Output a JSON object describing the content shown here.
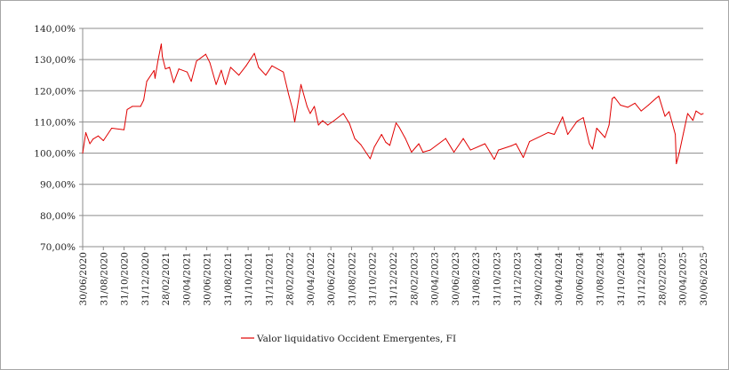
{
  "chart_data": {
    "type": "line",
    "title": "",
    "xlabel": "",
    "ylabel": "",
    "x_unit": "months since 30/06/2020",
    "xlim": [
      0,
      60
    ],
    "ylim": [
      70,
      140
    ],
    "y_ticks": [
      70,
      80,
      90,
      100,
      110,
      120,
      130,
      140
    ],
    "y_tick_labels": [
      "70,00%",
      "80,00%",
      "90,00%",
      "100,00%",
      "110,00%",
      "120,00%",
      "130,00%",
      "140,00%"
    ],
    "x_tick_labels": [
      "30/06/2020",
      "31/08/2020",
      "31/10/2020",
      "31/12/2020",
      "28/02/2021",
      "30/04/2021",
      "30/06/2021",
      "31/08/2021",
      "31/10/2021",
      "31/12/2021",
      "28/02/2022",
      "30/04/2022",
      "30/06/2022",
      "31/08/2022",
      "31/10/2022",
      "31/12/2022",
      "28/02/2023",
      "30/04/2023",
      "30/06/2023",
      "31/08/2023",
      "31/10/2023",
      "31/12/2023",
      "29/02/2024",
      "30/04/2024",
      "30/06/2024",
      "31/08/2024",
      "31/10/2024",
      "31/12/2024",
      "28/02/2025",
      "30/04/2025",
      "30/06/2025"
    ],
    "grid": true,
    "legend_position": "bottom",
    "series": [
      {
        "name": "Valor liquidativo Occident Emergentes, FI",
        "color": "#e00000",
        "x": [
          0,
          0.3,
          0.7,
          1.0,
          1.5,
          2.0,
          2.8,
          4.0,
          4.3,
          4.8,
          5.6,
          5.9,
          6.2,
          6.9,
          7.0,
          7.3,
          7.6,
          7.7,
          8.0,
          8.4,
          8.8,
          9.3,
          10.1,
          10.5,
          11.0,
          11.9,
          12.3,
          12.9,
          13.4,
          13.8,
          14.3,
          15.1,
          15.8,
          16.6,
          17.0,
          17.7,
          18.3,
          19.4,
          19.9,
          20.3,
          20.5,
          20.9,
          21.1,
          21.7,
          22.0,
          22.4,
          22.8,
          23.2,
          23.7,
          24.3,
          25.2,
          25.8,
          26.3,
          26.9,
          27.8,
          28.2,
          28.9,
          29.3,
          29.7,
          30.3,
          30.6,
          31.2,
          31.8,
          32.5,
          32.9,
          33.6,
          35.1,
          35.9,
          36.8,
          37.5,
          38.9,
          39.8,
          40.2,
          41.5,
          41.9,
          42.6,
          43.2,
          45.0,
          45.6,
          46.4,
          46.9,
          47.8,
          48.4,
          49.0,
          49.3,
          49.7,
          50.5,
          50.9,
          51.2,
          51.4,
          52.0,
          52.7,
          53.4,
          54.0,
          54.7,
          55.4,
          55.7,
          56.3,
          56.7,
          57.3,
          57.4,
          57.7,
          58.1,
          58.5,
          59.0,
          59.3,
          59.8,
          60.0
        ],
        "values": [
          100,
          106.6,
          103,
          104.5,
          105.5,
          104,
          108,
          107.5,
          114,
          115,
          115,
          117,
          123,
          126.5,
          124,
          130,
          135,
          131,
          127,
          127.5,
          122.6,
          127,
          126,
          123,
          129.5,
          131.7,
          129,
          122,
          126.6,
          122,
          127.5,
          125,
          128,
          132,
          127.5,
          125,
          128,
          126,
          119,
          114,
          110,
          117.5,
          122,
          115,
          112.7,
          115,
          109,
          110.4,
          109,
          110.4,
          112.7,
          109.5,
          104.7,
          102.7,
          98.2,
          102,
          106,
          103.5,
          102.5,
          109.7,
          108.3,
          104.7,
          100.3,
          103,
          100.3,
          101,
          104.7,
          100.3,
          104.7,
          101,
          103,
          98,
          101,
          102.4,
          103,
          98.6,
          103.7,
          106.6,
          106,
          111.6,
          106,
          110.2,
          111.4,
          103,
          101.3,
          108,
          105,
          109,
          117.5,
          118,
          115.4,
          114.7,
          116,
          113.5,
          115.4,
          117.5,
          118.3,
          111.8,
          113.3,
          106,
          96.6,
          100.3,
          106.6,
          112.7,
          110.5,
          113.5,
          112.4,
          112.7
        ]
      }
    ]
  }
}
